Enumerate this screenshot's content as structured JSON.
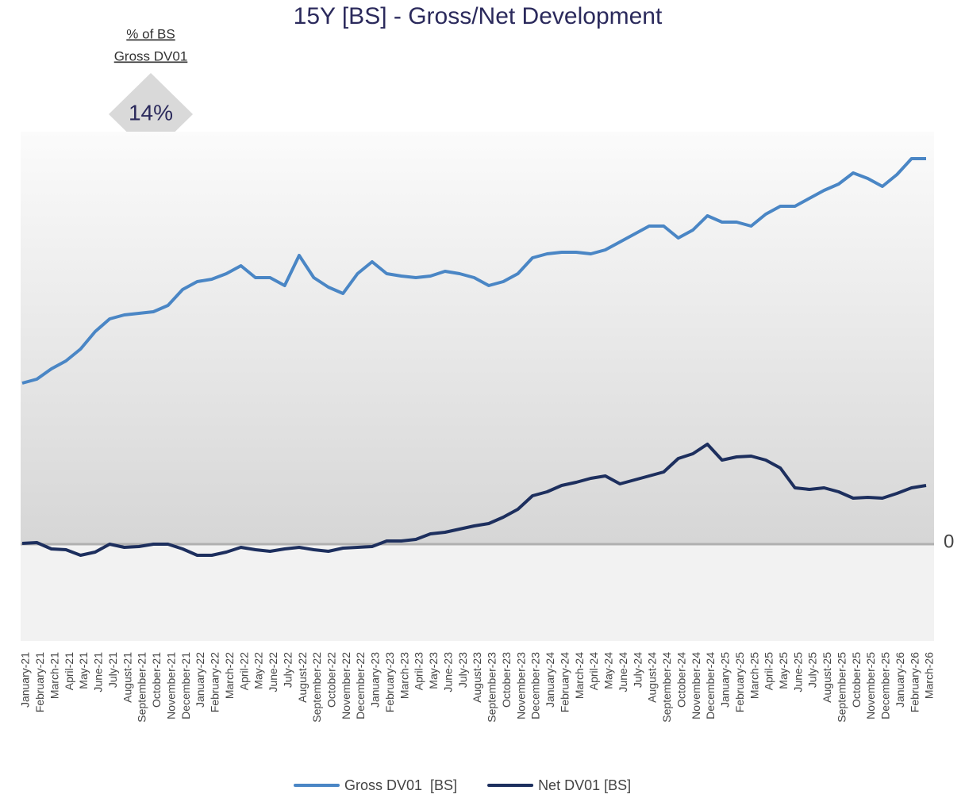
{
  "chart_data": {
    "type": "line",
    "title": "15Y [BS] - Gross/Net Development",
    "annotation": {
      "label": [
        "% of BS",
        "Gross DV01"
      ],
      "value": "14%"
    },
    "categories": [
      "January-21",
      "February-21",
      "March-21",
      "April-21",
      "May-21",
      "June-21",
      "July-21",
      "August-21",
      "September-21",
      "October-21",
      "November-21",
      "December-21",
      "January-22",
      "February-22",
      "March-22",
      "April-22",
      "May-22",
      "June-22",
      "July-22",
      "August-22",
      "September-22",
      "October-22",
      "November-22",
      "December-22",
      "January-23",
      "February-23",
      "March-23",
      "April-23",
      "May-23",
      "June-23",
      "July-23",
      "August-23",
      "September-23",
      "October-23",
      "November-23",
      "December-23",
      "January-24",
      "February-24",
      "March-24",
      "April-24",
      "May-24",
      "June-24",
      "July-24",
      "August-24",
      "September-24",
      "October-24",
      "November-24",
      "December-24",
      "January-25",
      "February-25",
      "March-25",
      "April-25",
      "May-25",
      "June-25",
      "July-25",
      "August-25",
      "September-25",
      "October-25",
      "November-25",
      "December-25",
      "January-26",
      "February-26",
      "March-26"
    ],
    "series": [
      {
        "name": "Gross DV01  [BS]",
        "color": "#4a86c5",
        "values": [
          203,
          208,
          221,
          231,
          246,
          268,
          284,
          289,
          291,
          293,
          301,
          321,
          331,
          334,
          341,
          351,
          336,
          336,
          326,
          364,
          336,
          324,
          316,
          341,
          356,
          341,
          338,
          336,
          338,
          344,
          341,
          336,
          326,
          331,
          341,
          361,
          366,
          368,
          368,
          366,
          371,
          381,
          391,
          401,
          401,
          386,
          396,
          414,
          406,
          406,
          401,
          416,
          426,
          426,
          436,
          446,
          454,
          468,
          461,
          451,
          466,
          486,
          486
        ]
      },
      {
        "name": "Net DV01 [BS]",
        "color": "#1d2f5e",
        "values": [
          1,
          2,
          -6,
          -7,
          -14,
          -10,
          0,
          -4,
          -3,
          0,
          0,
          -6,
          -14,
          -14,
          -10,
          -4,
          -7,
          -9,
          -6,
          -4,
          -7,
          -9,
          -5,
          -4,
          -3,
          4,
          4,
          6,
          13,
          15,
          19,
          23,
          26,
          34,
          44,
          61,
          66,
          74,
          78,
          83,
          86,
          76,
          81,
          86,
          91,
          108,
          114,
          126,
          106,
          110,
          111,
          106,
          96,
          71,
          69,
          71,
          66,
          58,
          59,
          58,
          64,
          71,
          74
        ]
      }
    ],
    "ylim": [
      -122,
      520
    ],
    "yticks": [
      0
    ]
  }
}
